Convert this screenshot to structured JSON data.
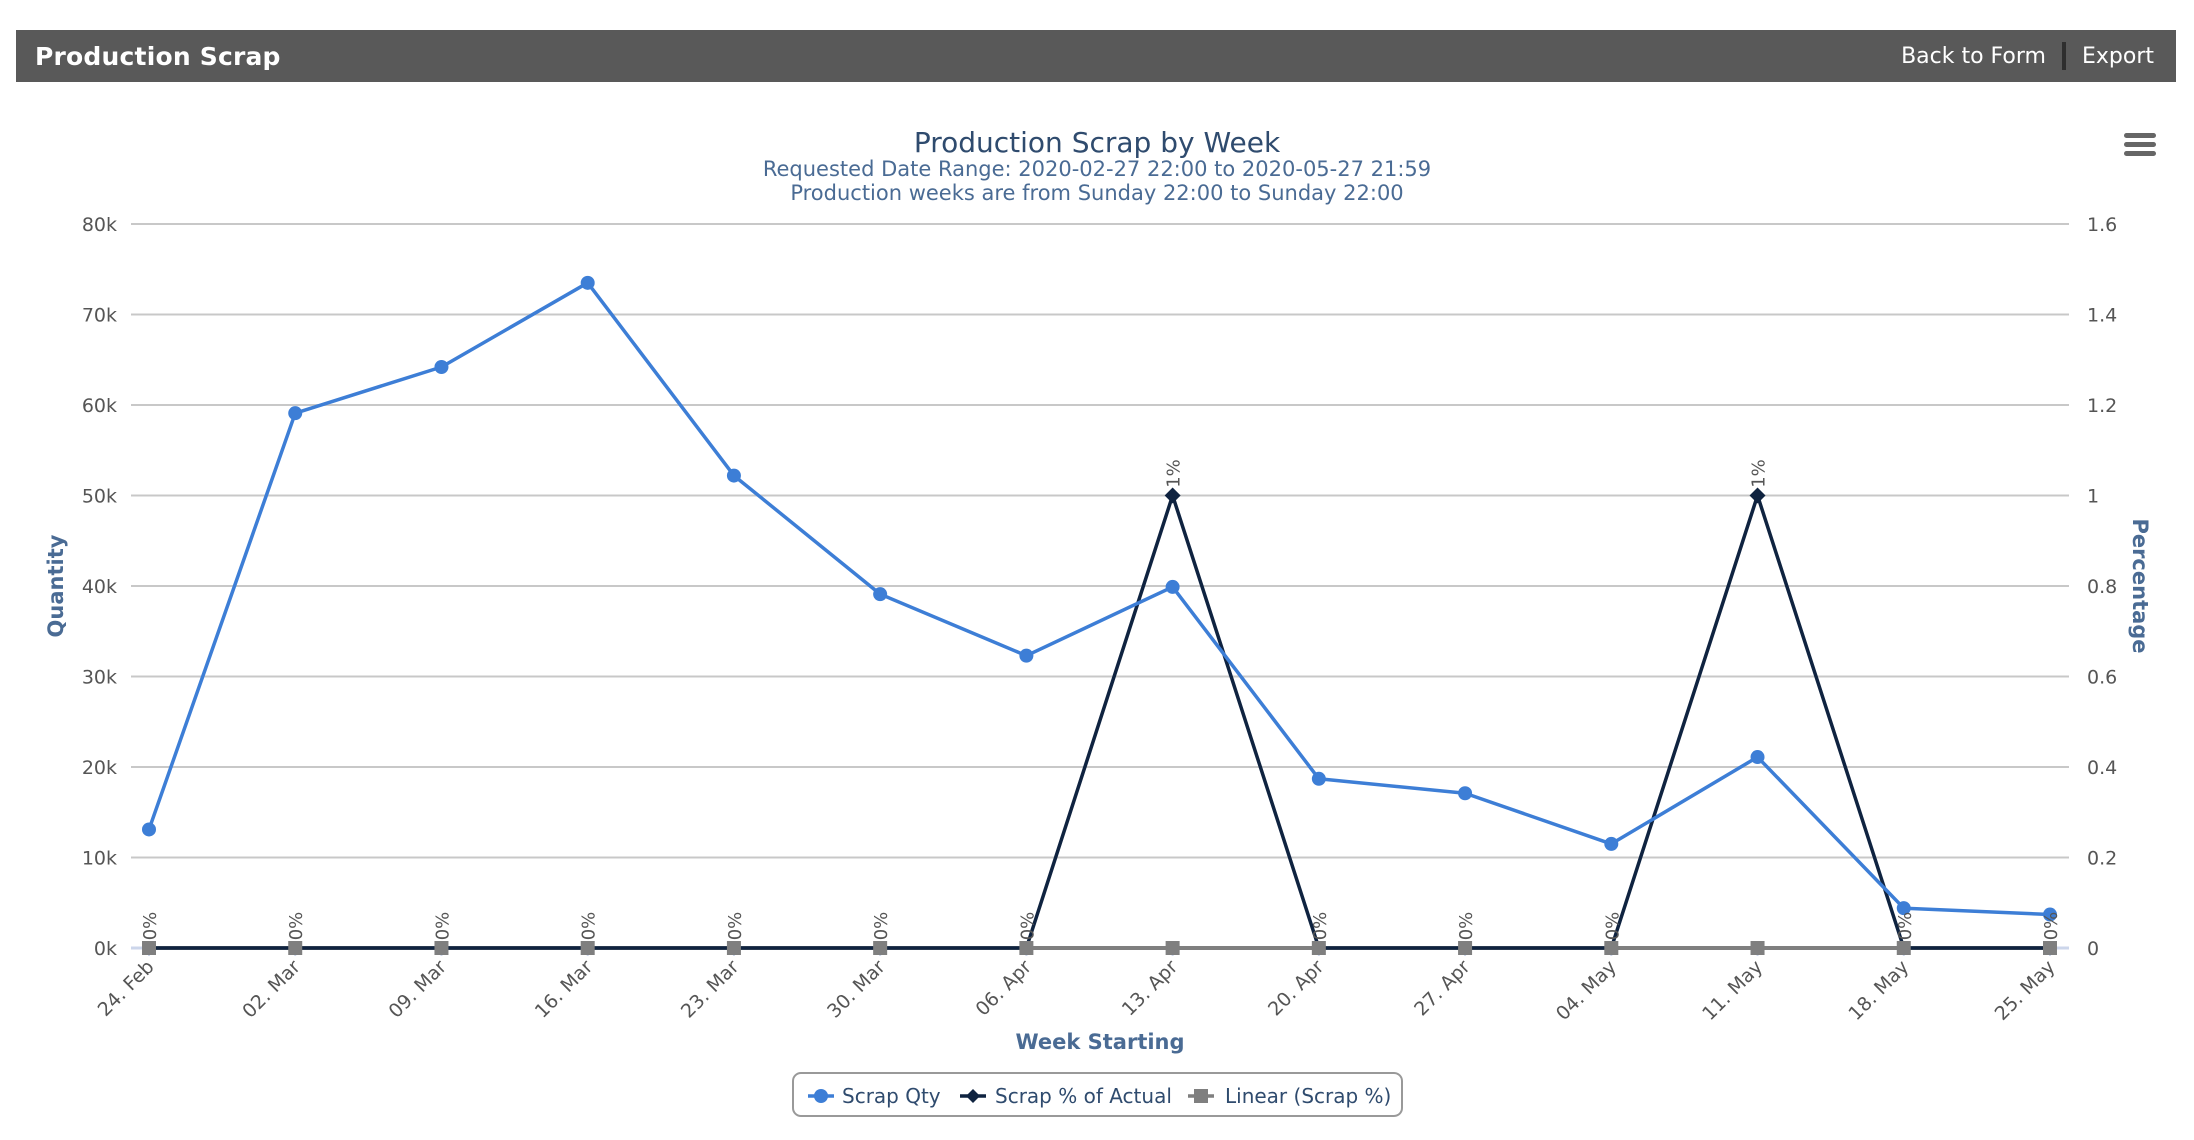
{
  "header": {
    "title": "Production Scrap",
    "back_label": "Back to Form",
    "export_label": "Export"
  },
  "menu": {
    "icon": "hamburger-menu-icon"
  },
  "chart_data": {
    "type": "line",
    "title": "Production Scrap by Week",
    "subtitles": [
      "Requested Date Range: 2020-02-27 22:00 to 2020-05-27 21:59",
      "Production weeks are from Sunday 22:00 to Sunday 22:00"
    ],
    "xlabel": "Week Starting",
    "ylabel": "Quantity",
    "y2label": "Percentage",
    "categories": [
      "24. Feb",
      "02. Mar",
      "09. Mar",
      "16. Mar",
      "23. Mar",
      "30. Mar",
      "06. Apr",
      "13. Apr",
      "20. Apr",
      "27. Apr",
      "04. May",
      "11. May",
      "18. May",
      "25. May"
    ],
    "ylim": [
      0,
      80000
    ],
    "y_ticks": [
      "0k",
      "10k",
      "20k",
      "30k",
      "40k",
      "50k",
      "60k",
      "70k",
      "80k"
    ],
    "y2lim": [
      0,
      1.6
    ],
    "y2_ticks": [
      "0",
      "0.2",
      "0.4",
      "0.6",
      "0.8",
      "1",
      "1.2",
      "1.4",
      "1.6"
    ],
    "grid": true,
    "legend_position": "bottom",
    "series": [
      {
        "name": "Scrap Qty",
        "axis": "left",
        "color": "#3d7ed6",
        "marker": "circle",
        "values": [
          13100,
          59100,
          64200,
          73500,
          52200,
          39100,
          32300,
          39900,
          18700,
          17100,
          11500,
          21100,
          4400,
          3700
        ]
      },
      {
        "name": "Scrap % of Actual",
        "axis": "right",
        "color": "#0f2340",
        "marker": "diamond",
        "values": [
          0,
          0,
          0,
          0,
          0,
          0,
          0,
          1,
          0,
          0,
          0,
          1,
          0,
          0
        ],
        "data_labels": [
          "0%",
          "0%",
          "0%",
          "0%",
          "0%",
          "0%",
          "0%",
          "1%",
          "0%",
          "0%",
          "0%",
          "1%",
          "0%",
          "0%"
        ]
      },
      {
        "name": "Linear (Scrap %)",
        "axis": "right",
        "color": "#7f7f7f",
        "marker": "square",
        "values": [
          0,
          0,
          0,
          0,
          0,
          0,
          0,
          0,
          0,
          0,
          0,
          0,
          0,
          0
        ]
      }
    ]
  }
}
